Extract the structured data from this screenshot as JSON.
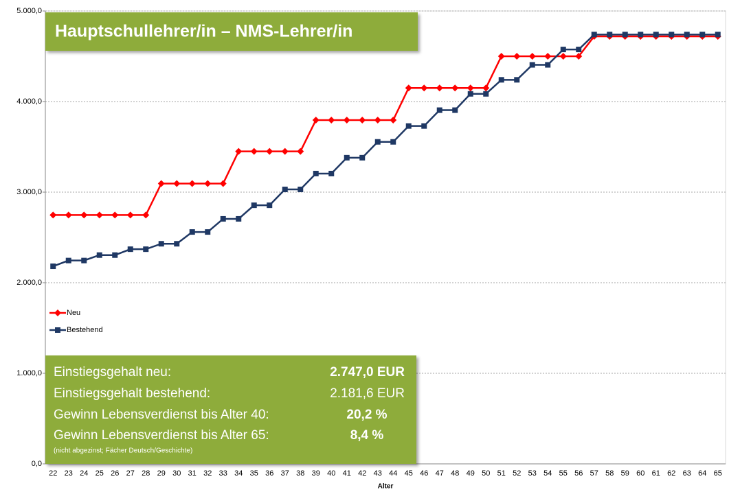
{
  "chart_data": {
    "type": "line",
    "title": "Hauptschullehrer/in – NMS-Lehrer/in",
    "x_label": "Alter",
    "categories": [
      "22",
      "23",
      "24",
      "25",
      "26",
      "27",
      "28",
      "29",
      "30",
      "31",
      "32",
      "33",
      "34",
      "35",
      "36",
      "37",
      "38",
      "39",
      "40",
      "41",
      "42",
      "43",
      "44",
      "45",
      "46",
      "47",
      "48",
      "49",
      "50",
      "51",
      "52",
      "53",
      "54",
      "55",
      "56",
      "57",
      "58",
      "59",
      "60",
      "61",
      "62",
      "63",
      "64",
      "65"
    ],
    "series": [
      {
        "name": "Neu",
        "color": "#ff0000",
        "marker": "diamond",
        "values": [
          2747,
          2747,
          2747,
          2747,
          2747,
          2747,
          2747,
          3095,
          3095,
          3095,
          3095,
          3095,
          3450,
          3450,
          3450,
          3450,
          3450,
          3795,
          3795,
          3795,
          3795,
          3795,
          3795,
          4150,
          4150,
          4150,
          4150,
          4150,
          4150,
          4500,
          4500,
          4500,
          4500,
          4500,
          4500,
          4720,
          4720,
          4720,
          4720,
          4720,
          4720,
          4720,
          4720,
          4720
        ]
      },
      {
        "name": "Bestehend",
        "color": "#1f3864",
        "marker": "square",
        "values": [
          2181.6,
          2245,
          2245,
          2305,
          2305,
          2370,
          2370,
          2430,
          2430,
          2560,
          2560,
          2705,
          2705,
          2855,
          2855,
          3030,
          3030,
          3205,
          3205,
          3380,
          3380,
          3555,
          3555,
          3730,
          3730,
          3905,
          3905,
          4085,
          4085,
          4240,
          4240,
          4405,
          4405,
          4575,
          4575,
          4740,
          4740,
          4740,
          4740,
          4740,
          4740,
          4740,
          4740,
          4740
        ]
      }
    ],
    "ylim": [
      0,
      5000
    ],
    "yticks": [
      {
        "value": 0,
        "label": "0,0"
      },
      {
        "value": 1000,
        "label": "1.000,0"
      },
      {
        "value": 2000,
        "label": "2.000,0"
      },
      {
        "value": 3000,
        "label": "3.000,0"
      },
      {
        "value": 4000,
        "label": "4.000,0"
      },
      {
        "value": 5000,
        "label": "5.000,0"
      }
    ],
    "grid": true,
    "legend": "left",
    "info_box": {
      "rows": [
        {
          "label": "Einstiegsgehalt neu:",
          "value": "2.747,0 EUR"
        },
        {
          "label": "Einstiegsgehalt bestehend:",
          "value": "2.181,6 EUR"
        },
        {
          "label": "Gewinn Lebensverdienst bis Alter 40:",
          "value": "20,2 %"
        },
        {
          "label": "Gewinn Lebensverdienst bis Alter 65:",
          "value": "8,4 %"
        }
      ],
      "note": "(nicht abgezinst; Fächer Deutsch/Geschichte)"
    }
  }
}
